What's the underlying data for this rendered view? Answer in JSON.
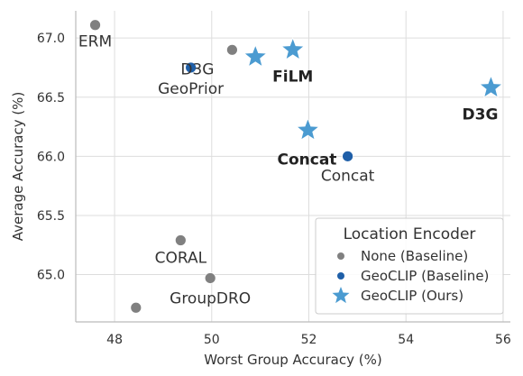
{
  "chart_data": {
    "type": "scatter",
    "xlabel": "Worst Group Accuracy (%)",
    "ylabel": "Average Accuracy (%)",
    "xlim": [
      47.2,
      56.15
    ],
    "ylim": [
      64.6,
      67.23
    ],
    "xticks": [
      "48",
      "50",
      "52",
      "54",
      "56"
    ],
    "yticks": [
      "65.0",
      "65.5",
      "66.0",
      "66.5",
      "67.0"
    ],
    "grid": true,
    "legend": {
      "title": "Location Encoder",
      "placement": "lower-right",
      "entries": [
        {
          "label": "None (Baseline)",
          "marker": "dot",
          "color": "#808080"
        },
        {
          "label": "GeoCLIP (Baseline)",
          "marker": "dot",
          "color": "#1f5fa8"
        },
        {
          "label": "GeoCLIP (Ours)",
          "marker": "star",
          "color": "#4b9bd1"
        }
      ]
    },
    "points": [
      {
        "label": "ERM",
        "x": 47.6,
        "y": 67.11,
        "group": 0,
        "label_bold": false
      },
      {
        "label": "D3G",
        "x": 50.42,
        "y": 66.9,
        "group": 0,
        "label_bold": false
      },
      {
        "label": "CORAL",
        "x": 49.36,
        "y": 65.29,
        "group": 0,
        "label_bold": false
      },
      {
        "label": "GroupDRO",
        "x": 49.97,
        "y": 64.97,
        "group": 0,
        "label_bold": false
      },
      {
        "label": "",
        "x": 48.44,
        "y": 64.72,
        "group": 0,
        "label_bold": false
      },
      {
        "label": "GeoPrior",
        "x": 49.57,
        "y": 66.75,
        "group": 1,
        "label_bold": false
      },
      {
        "label": "Concat",
        "x": 52.8,
        "y": 66.0,
        "group": 1,
        "label_bold": false
      },
      {
        "label": "",
        "x": 50.9,
        "y": 66.84,
        "group": 2,
        "label_bold": false
      },
      {
        "label": "FiLM",
        "x": 51.67,
        "y": 66.9,
        "group": 2,
        "label_bold": true
      },
      {
        "label": "Concat",
        "x": 51.98,
        "y": 66.22,
        "group": 2,
        "label_bold": true
      },
      {
        "label": "D3G",
        "x": 55.75,
        "y": 66.58,
        "group": 2,
        "label_bold": true
      }
    ]
  }
}
